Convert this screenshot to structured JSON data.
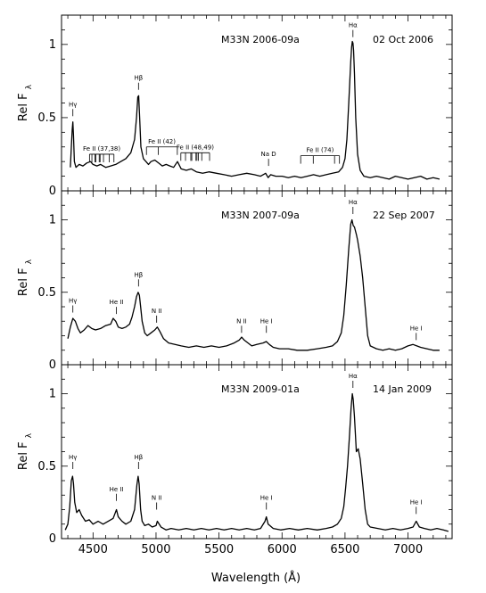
{
  "chart_data": {
    "type": "line",
    "xlabel": "Wavelength (Å)",
    "ylabel": "Rel F",
    "ylabel_sub": "λ",
    "xlim": [
      4250,
      7350
    ],
    "x_ticks": [
      4500,
      5000,
      5500,
      6000,
      6500,
      7000
    ],
    "x_tick_labels": [
      "4500",
      "5000",
      "5500",
      "6000",
      "6500",
      "7000"
    ],
    "y_ticks": [
      0,
      0.5,
      1
    ],
    "y_tick_labels": [
      "0",
      "0.5",
      "1"
    ],
    "grid": false,
    "panels": [
      {
        "object": "M33N 2006-09a",
        "date": "02 Oct 2006",
        "ylim": [
          0,
          1.2
        ],
        "series": [
          {
            "x": [
              4320,
              4328,
              4335,
              4340,
              4345,
              4352,
              4365,
              4390,
              4420,
              4450,
              4480,
              4500,
              4530,
              4560,
              4600,
              4640,
              4680,
              4720,
              4760,
              4800,
              4830,
              4845,
              4855,
              4862,
              4870,
              4880,
              4900,
              4920,
              4940,
              4960,
              4990,
              5020,
              5050,
              5080,
              5110,
              5140,
              5170,
              5200,
              5240,
              5280,
              5320,
              5370,
              5420,
              5480,
              5540,
              5600,
              5660,
              5720,
              5780,
              5830,
              5870,
              5890,
              5910,
              5950,
              6000,
              6050,
              6100,
              6150,
              6200,
              6250,
              6300,
              6350,
              6400,
              6450,
              6480,
              6500,
              6515,
              6530,
              6545,
              6552,
              6558,
              6563,
              6568,
              6575,
              6585,
              6600,
              6620,
              6650,
              6700,
              6750,
              6800,
              6850,
              6900,
              6950,
              7000,
              7050,
              7100,
              7150,
              7200,
              7250
            ],
            "y": [
              0.16,
              0.3,
              0.42,
              0.47,
              0.38,
              0.2,
              0.16,
              0.18,
              0.17,
              0.19,
              0.2,
              0.18,
              0.17,
              0.18,
              0.16,
              0.17,
              0.18,
              0.2,
              0.22,
              0.26,
              0.35,
              0.5,
              0.64,
              0.65,
              0.5,
              0.3,
              0.22,
              0.2,
              0.18,
              0.2,
              0.21,
              0.19,
              0.17,
              0.18,
              0.17,
              0.16,
              0.2,
              0.15,
              0.14,
              0.15,
              0.13,
              0.12,
              0.13,
              0.12,
              0.11,
              0.1,
              0.11,
              0.12,
              0.11,
              0.1,
              0.12,
              0.09,
              0.11,
              0.1,
              0.1,
              0.09,
              0.1,
              0.09,
              0.1,
              0.11,
              0.1,
              0.11,
              0.12,
              0.13,
              0.16,
              0.22,
              0.35,
              0.6,
              0.88,
              0.98,
              1.02,
              1.01,
              0.96,
              0.8,
              0.5,
              0.25,
              0.14,
              0.1,
              0.09,
              0.1,
              0.09,
              0.08,
              0.1,
              0.09,
              0.08,
              0.09,
              0.1,
              0.08,
              0.09,
              0.08
            ]
          }
        ],
        "annotations": [
          {
            "label": "Hγ",
            "x": 4340,
            "y": 0.51
          },
          {
            "label": "Hβ",
            "x": 4861,
            "y": 0.69
          },
          {
            "label": "Na D",
            "x": 5893,
            "y": 0.17
          },
          {
            "label": "Hα",
            "x": 6563,
            "y": 1.05
          }
        ],
        "multiplets": [
          {
            "label": "Fe II (37,38)",
            "lines": [
              4472,
              4491,
              4515,
              4522,
              4549,
              4556,
              4583,
              4629,
              4666
            ],
            "y": 0.25
          },
          {
            "label": "Fe II (42)",
            "lines": [
              4924,
              5018,
              5169
            ],
            "y": 0.3
          },
          {
            "label": "Fe II (48,49)",
            "lines": [
              5197,
              5234,
              5276,
              5284,
              5317,
              5325,
              5337,
              5363,
              5425
            ],
            "y": 0.26
          },
          {
            "label": "Fe II (74)",
            "lines": [
              6148,
              6248,
              6417,
              6456
            ],
            "y": 0.24
          }
        ]
      },
      {
        "object": "M33N 2007-09a",
        "date": "22 Sep 2007",
        "ylim": [
          0,
          1.2
        ],
        "series": [
          {
            "x": [
              4300,
              4320,
              4340,
              4360,
              4380,
              4400,
              4430,
              4460,
              4490,
              4520,
              4560,
              4600,
              4640,
              4660,
              4680,
              4700,
              4730,
              4760,
              4790,
              4810,
              4830,
              4845,
              4858,
              4868,
              4878,
              4890,
              4910,
              4930,
              4960,
              4990,
              5010,
              5030,
              5060,
              5100,
              5150,
              5200,
              5260,
              5320,
              5380,
              5440,
              5500,
              5560,
              5620,
              5660,
              5680,
              5700,
              5730,
              5760,
              5800,
              5850,
              5875,
              5900,
              5930,
              5980,
              6050,
              6120,
              6200,
              6280,
              6350,
              6400,
              6440,
              6470,
              6490,
              6510,
              6530,
              6545,
              6555,
              6565,
              6575,
              6590,
              6600,
              6620,
              6640,
              6660,
              6680,
              6700,
              6750,
              6800,
              6850,
              6900,
              6950,
              7000,
              7040,
              7070,
              7100,
              7150,
              7200,
              7250
            ],
            "y": [
              0.18,
              0.26,
              0.32,
              0.3,
              0.25,
              0.22,
              0.24,
              0.27,
              0.25,
              0.24,
              0.25,
              0.27,
              0.28,
              0.32,
              0.3,
              0.26,
              0.25,
              0.26,
              0.28,
              0.33,
              0.4,
              0.47,
              0.5,
              0.48,
              0.4,
              0.3,
              0.22,
              0.2,
              0.22,
              0.24,
              0.26,
              0.23,
              0.18,
              0.15,
              0.14,
              0.13,
              0.12,
              0.13,
              0.12,
              0.13,
              0.12,
              0.13,
              0.15,
              0.17,
              0.19,
              0.17,
              0.15,
              0.13,
              0.14,
              0.15,
              0.16,
              0.14,
              0.12,
              0.11,
              0.11,
              0.1,
              0.1,
              0.11,
              0.12,
              0.13,
              0.16,
              0.22,
              0.34,
              0.55,
              0.8,
              0.97,
              1.0,
              0.96,
              0.95,
              0.9,
              0.86,
              0.75,
              0.6,
              0.4,
              0.2,
              0.13,
              0.11,
              0.1,
              0.11,
              0.1,
              0.11,
              0.13,
              0.14,
              0.13,
              0.12,
              0.11,
              0.1,
              0.1
            ]
          }
        ],
        "annotations": [
          {
            "label": "Hγ",
            "x": 4340,
            "y": 0.36
          },
          {
            "label": "He II",
            "x": 4686,
            "y": 0.35
          },
          {
            "label": "Hβ",
            "x": 4861,
            "y": 0.54
          },
          {
            "label": "N II",
            "x": 5005,
            "y": 0.29
          },
          {
            "label": "N II",
            "x": 5679,
            "y": 0.22
          },
          {
            "label": "He I",
            "x": 5876,
            "y": 0.22
          },
          {
            "label": "Hα",
            "x": 6563,
            "y": 1.04
          },
          {
            "label": "He I",
            "x": 7065,
            "y": 0.17
          }
        ]
      },
      {
        "object": "M33N 2009-01a",
        "date": "14 Jan 2009",
        "ylim": [
          0,
          1.2
        ],
        "series": [
          {
            "x": [
              4280,
              4300,
              4315,
              4328,
              4338,
              4345,
              4355,
              4370,
              4390,
              4410,
              4440,
              4470,
              4500,
              4540,
              4580,
              4620,
              4660,
              4686,
              4700,
              4730,
              4760,
              4800,
              4830,
              4848,
              4858,
              4866,
              4878,
              4890,
              4910,
              4940,
              4970,
              5000,
              5010,
              5040,
              5080,
              5120,
              5180,
              5240,
              5300,
              5360,
              5420,
              5480,
              5540,
              5600,
              5660,
              5720,
              5780,
              5830,
              5865,
              5876,
              5890,
              5930,
              5990,
              6060,
              6130,
              6200,
              6280,
              6350,
              6400,
              6440,
              6470,
              6490,
              6505,
              6520,
              6535,
              6548,
              6558,
              6565,
              6575,
              6590,
              6605,
              6620,
              6640,
              6660,
              6680,
              6700,
              6760,
              6820,
              6880,
              6940,
              7000,
              7040,
              7065,
              7090,
              7130,
              7180,
              7230,
              7280,
              7320
            ],
            "y": [
              0.06,
              0.1,
              0.22,
              0.4,
              0.43,
              0.38,
              0.25,
              0.18,
              0.2,
              0.16,
              0.12,
              0.13,
              0.1,
              0.12,
              0.1,
              0.12,
              0.14,
              0.2,
              0.15,
              0.12,
              0.1,
              0.12,
              0.2,
              0.37,
              0.43,
              0.38,
              0.2,
              0.12,
              0.09,
              0.1,
              0.08,
              0.09,
              0.12,
              0.08,
              0.06,
              0.07,
              0.06,
              0.07,
              0.06,
              0.07,
              0.06,
              0.07,
              0.06,
              0.07,
              0.06,
              0.07,
              0.06,
              0.07,
              0.12,
              0.15,
              0.1,
              0.07,
              0.06,
              0.07,
              0.06,
              0.07,
              0.06,
              0.07,
              0.08,
              0.1,
              0.14,
              0.22,
              0.35,
              0.5,
              0.7,
              0.9,
              1.0,
              0.96,
              0.84,
              0.6,
              0.62,
              0.55,
              0.38,
              0.2,
              0.1,
              0.08,
              0.07,
              0.06,
              0.07,
              0.06,
              0.07,
              0.08,
              0.12,
              0.08,
              0.07,
              0.06,
              0.07,
              0.06,
              0.05
            ]
          }
        ],
        "annotations": [
          {
            "label": "Hγ",
            "x": 4340,
            "y": 0.48
          },
          {
            "label": "He II",
            "x": 4686,
            "y": 0.26
          },
          {
            "label": "Hβ",
            "x": 4861,
            "y": 0.48
          },
          {
            "label": "N II",
            "x": 5005,
            "y": 0.2
          },
          {
            "label": "He I",
            "x": 5876,
            "y": 0.2
          },
          {
            "label": "Hα",
            "x": 6563,
            "y": 1.04
          },
          {
            "label": "He I",
            "x": 7065,
            "y": 0.17
          }
        ]
      }
    ]
  }
}
